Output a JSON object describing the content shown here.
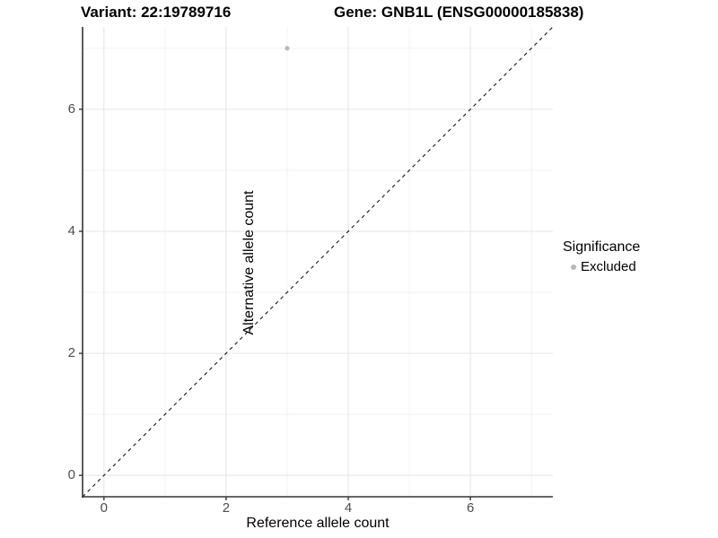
{
  "titles": {
    "variant": "Variant: 22:19789716",
    "gene": "Gene: GNB1L (ENSG00000185838)"
  },
  "axes": {
    "x": {
      "label": "Reference allele count",
      "ticks": [
        "0",
        "2",
        "4",
        "6"
      ]
    },
    "y": {
      "label": "Alternative allele count",
      "ticks": [
        "0",
        "2",
        "4",
        "6"
      ]
    }
  },
  "legend": {
    "title": "Significance",
    "items": [
      {
        "label": "Excluded",
        "color": "#b8b8b8"
      }
    ]
  },
  "chart_data": {
    "type": "scatter",
    "title": "Variant: 22:19789716  |  Gene: GNB1L (ENSG00000185838)",
    "xlabel": "Reference allele count",
    "ylabel": "Alternative allele count",
    "xlim": [
      -0.35,
      7.35
    ],
    "ylim": [
      -0.35,
      7.35
    ],
    "x_ticks": [
      0,
      2,
      4,
      6
    ],
    "y_ticks": [
      0,
      2,
      4,
      6
    ],
    "x_minor_ticks": [
      1,
      3,
      5,
      7
    ],
    "y_minor_ticks": [
      1,
      3,
      5,
      7
    ],
    "grid": true,
    "legend_position": "right",
    "reference_line": {
      "show": true,
      "equation": "y = x",
      "style": "dashed",
      "color": "#000000"
    },
    "series": [
      {
        "name": "Excluded",
        "color": "#b8b8b8",
        "points": [
          {
            "x": 3,
            "y": 7
          }
        ]
      }
    ]
  }
}
